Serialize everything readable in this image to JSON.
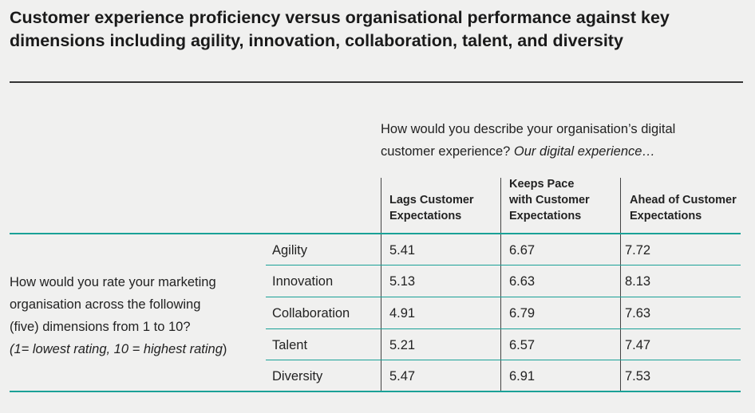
{
  "title": "Customer experience proficiency versus organisational performance against key dimensions including agility, innovation, collaboration, talent, and diversity",
  "question": {
    "line1": "How would you describe your organisation’s digital",
    "line2_prefix": "customer experience? ",
    "line2_italic": "Our digital experience…"
  },
  "columns": [
    {
      "line1": "Lags Customer",
      "line2": "Expectations"
    },
    {
      "line1": "Keeps Pace",
      "line2": "with Customer",
      "line3": "Expectations"
    },
    {
      "line1": "Ahead of Customer",
      "line2": "Expectations"
    }
  ],
  "side_question": {
    "line1": "How would you rate your marketing",
    "line2": "organisation across the following",
    "line3": "(five) dimensions from 1 to 10?",
    "line4_italic": "(1= lowest rating, 10 = highest rating",
    "line4_suffix": ")"
  },
  "rows": [
    {
      "dimension": "Agility",
      "values": [
        "5.41",
        "6.67",
        "7.72"
      ]
    },
    {
      "dimension": "Innovation",
      "values": [
        "5.13",
        "6.63",
        "8.13"
      ]
    },
    {
      "dimension": "Collaboration",
      "values": [
        "4.91",
        "6.79",
        "7.63"
      ]
    },
    {
      "dimension": "Talent",
      "values": [
        "5.21",
        "6.57",
        "7.47"
      ]
    },
    {
      "dimension": "Diversity",
      "values": [
        "5.47",
        "6.91",
        "7.53"
      ]
    }
  ],
  "colors": {
    "accent": "#1aa197",
    "text": "#222222",
    "background": "#f0f0ef"
  }
}
